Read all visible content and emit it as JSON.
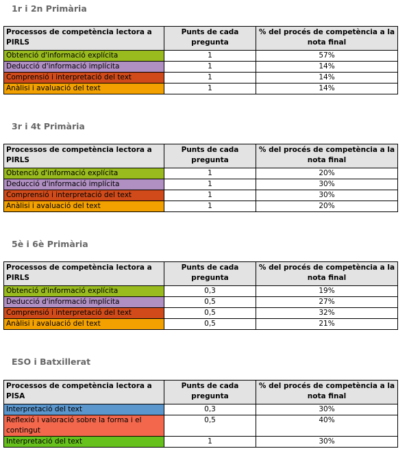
{
  "sections": [
    {
      "title": "1r i 2n Primària",
      "headers": [
        "Processos de competència lectora a PIRLS",
        "Punts de cada pregunta",
        "% del procés de competència a la nota final"
      ],
      "rows": [
        {
          "label": "Obtenció d'informació explícita",
          "points": "1",
          "percent": "57%",
          "color": "#99bb1e"
        },
        {
          "label": "Deducció d'informació implícita",
          "points": "1",
          "percent": "14%",
          "color": "#b08fc2"
        },
        {
          "label": "Comprensió i interpretació del text",
          "points": "1",
          "percent": "14%",
          "color": "#d14b1a"
        },
        {
          "label": "Anàlisi i avaluació del text",
          "points": "1",
          "percent": "14%",
          "color": "#f3a100"
        }
      ]
    },
    {
      "title": "3r i 4t Primària",
      "headers": [
        "Processos de competència lectora a PIRLS",
        "Punts de cada pregunta",
        "% del procés de competència a la nota final"
      ],
      "rows": [
        {
          "label": "Obtenció d'informació explícita",
          "points": "1",
          "percent": "20%",
          "color": "#99bb1e"
        },
        {
          "label": "Deducció d'informació implícita",
          "points": "1",
          "percent": "30%",
          "color": "#b08fc2"
        },
        {
          "label": "Comprensió i interpretació del text",
          "points": "1",
          "percent": "30%",
          "color": "#d14b1a"
        },
        {
          "label": "Anàlisi i avaluació del text",
          "points": "1",
          "percent": "20%",
          "color": "#f3a100"
        }
      ]
    },
    {
      "title": "5è i 6è Primària",
      "headers": [
        "Processos de competència lectora a PIRLS",
        "Punts de cada pregunta",
        "% del procés de competència a la nota final"
      ],
      "rows": [
        {
          "label": "Obtenció d'informació explícita",
          "points": "0,3",
          "percent": "19%",
          "color": "#99bb1e"
        },
        {
          "label": "Deducció d'informació implícita",
          "points": "0,5",
          "percent": "27%",
          "color": "#b08fc2"
        },
        {
          "label": "Comprensió i interpretació del text",
          "points": "0,5",
          "percent": "32%",
          "color": "#d14b1a"
        },
        {
          "label": "Anàlisi i avaluació del text",
          "points": "0,5",
          "percent": "21%",
          "color": "#f3a100"
        }
      ]
    },
    {
      "title": "ESO i Batxillerat",
      "headers": [
        "Processos de competència lectora a PISA",
        "Punts de cada pregunta",
        "% del procés de competència a la nota final"
      ],
      "rows": [
        {
          "label": "Interpretació del text",
          "points": "0,3",
          "percent": "30%",
          "color": "#5b96cd"
        },
        {
          "label": "Reflexió i valoració sobre la forma i el contingut",
          "points": "0,5",
          "percent": "40%",
          "color": "#f3674c"
        },
        {
          "label": "Interpretació del text",
          "points": "1",
          "percent": "30%",
          "color": "#66c11d"
        }
      ]
    }
  ]
}
